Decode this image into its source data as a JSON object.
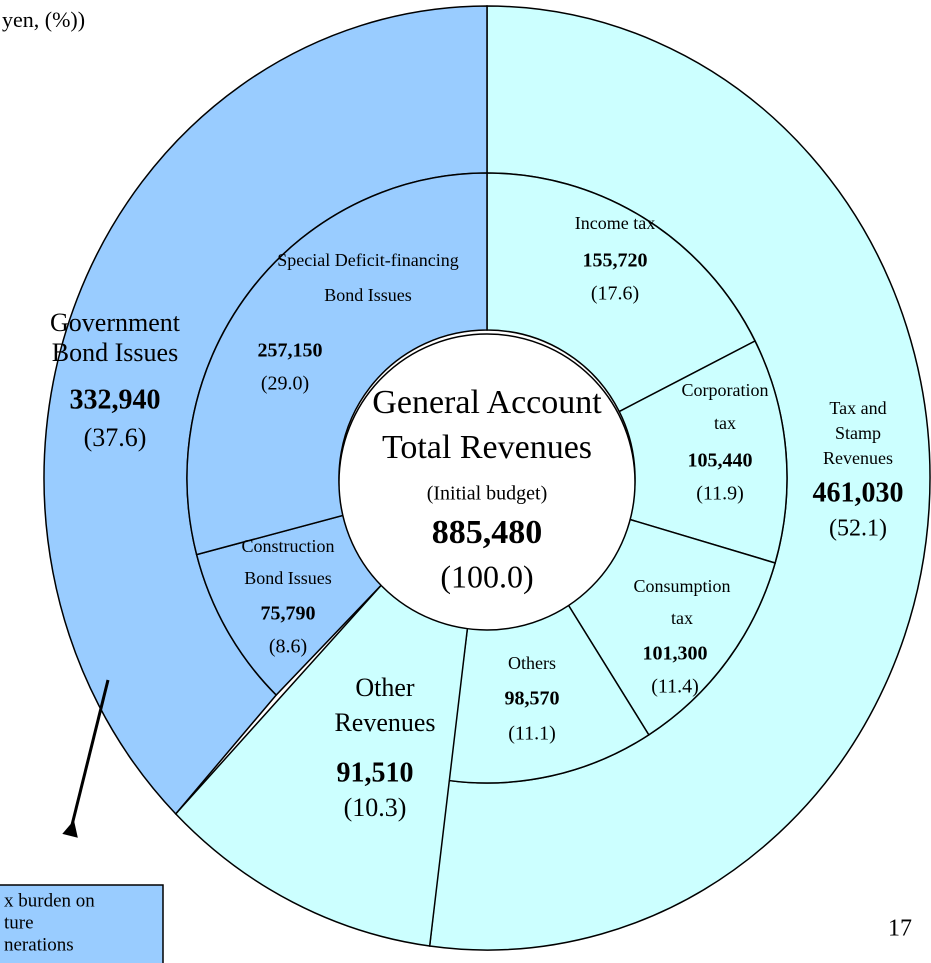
{
  "chart_data": {
    "type": "sunburst",
    "unit_note": "yen, (%))",
    "page_number": "17",
    "callout": [
      "x burden on",
      "ture",
      "nerations"
    ],
    "center": {
      "title": [
        "General Account",
        "Total Revenues"
      ],
      "note": "(Initial budget)",
      "value": 885480,
      "value_label": "885,480",
      "share": 100,
      "share_label": "(100.0)"
    },
    "segments": [
      {
        "name": [
          "Tax and",
          "Stamp",
          "Revenues"
        ],
        "value": 461030,
        "value_label": "461,030",
        "share": 52.1,
        "share_label": "(52.1)",
        "color": "#ccffff",
        "children": [
          {
            "name": [
              "Income tax"
            ],
            "value": 155720,
            "value_label": "155,720",
            "share": 17.6,
            "share_label": "(17.6)",
            "color": "#ccffff"
          },
          {
            "name": [
              "Corporation",
              "tax"
            ],
            "value": 105440,
            "value_label": "105,440",
            "share": 11.9,
            "share_label": "(11.9)",
            "color": "#ccffff"
          },
          {
            "name": [
              "Consumption",
              "tax"
            ],
            "value": 101300,
            "value_label": "101,300",
            "share": 11.4,
            "share_label": "(11.4)",
            "color": "#ccffff"
          },
          {
            "name": [
              "Others"
            ],
            "value": 98570,
            "value_label": "98,570",
            "share": 11.1,
            "share_label": "(11.1)",
            "color": "#ccffff"
          }
        ]
      },
      {
        "name": [
          "Other",
          "Revenues"
        ],
        "value": 91510,
        "value_label": "91,510",
        "share": 10.3,
        "share_label": "(10.3)",
        "color": "#ccffff",
        "children": []
      },
      {
        "name": [
          "Government",
          "Bond Issues"
        ],
        "value": 332940,
        "value_label": "332,940",
        "share": 37.6,
        "share_label": "(37.6)",
        "color": "#99ccff",
        "children": [
          {
            "name": [
              "Construction",
              "Bond Issues"
            ],
            "value": 75790,
            "value_label": "75,790",
            "share": 8.6,
            "share_label": "(8.6)",
            "color": "#99ccff"
          },
          {
            "name": [
              "Special Deficit-financing",
              "Bond Issues"
            ],
            "value": 257150,
            "value_label": "257,150",
            "share": 29,
            "share_label": "(29.0)",
            "color": "#99ccff"
          }
        ]
      }
    ]
  }
}
